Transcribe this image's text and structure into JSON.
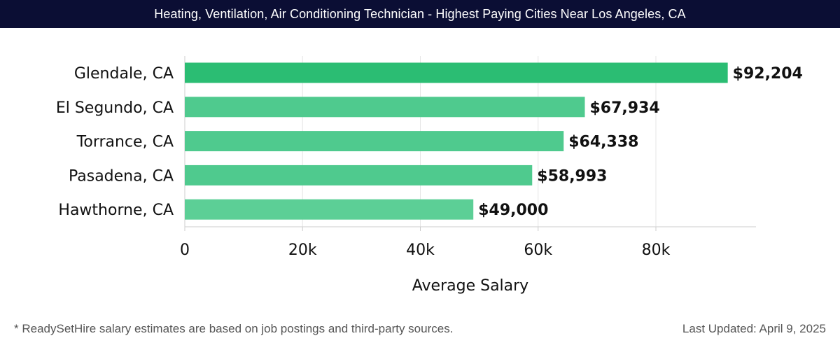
{
  "header": {
    "title": "Heating, Ventilation, Air Conditioning Technician - Highest Paying Cities Near Los Angeles, CA"
  },
  "footer": {
    "note": "* ReadySetHire salary estimates are based on job postings and third-party sources.",
    "updated": "Last Updated: April 9, 2025"
  },
  "chart_data": {
    "type": "bar",
    "orientation": "horizontal",
    "title": "Heating, Ventilation, Air Conditioning Technician - Highest Paying Cities Near Los Angeles, CA",
    "xlabel": "Average Salary",
    "ylabel": "",
    "categories": [
      "Glendale, CA",
      "El Segundo, CA",
      "Torrance, CA",
      "Pasadena, CA",
      "Hawthorne, CA"
    ],
    "values": [
      92204,
      67934,
      64338,
      58993,
      49000
    ],
    "value_labels": [
      "$92,204",
      "$67,934",
      "$64,338",
      "$58,993",
      "$49,000"
    ],
    "xlim": [
      0,
      97000
    ],
    "xticks": [
      0,
      20000,
      40000,
      60000,
      80000
    ],
    "xtick_labels": [
      "0",
      "20k",
      "40k",
      "60k",
      "80k"
    ],
    "grid": true,
    "colors": {
      "bar_top": "#2bbd73",
      "bar_default": "#4fca8e",
      "bar_light": "#5ccf96",
      "grid": "#e6e6e6",
      "axis": "#cccccc",
      "text": "#111111"
    }
  }
}
